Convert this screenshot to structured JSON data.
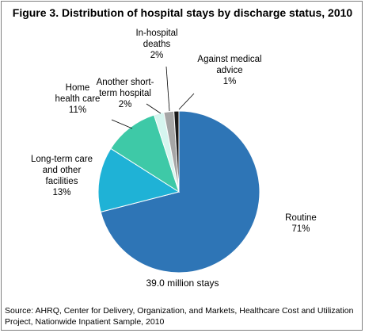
{
  "chart_data": {
    "type": "pie",
    "title": "Figure 3. Distribution of hospital stays by discharge status, 2010",
    "total_note": "39.0 million stays",
    "source": "Source: AHRQ, Center for Delivery, Organization, and Markets, Healthcare Cost and Utilization Project, Nationwide Inpatient Sample, 2010",
    "slices": [
      {
        "name": "Routine",
        "value": 71,
        "label": "71%",
        "color": "#2e75b6"
      },
      {
        "name": "Long-term care and other facilities",
        "value": 13,
        "label": "13%",
        "color": "#1fb2d6"
      },
      {
        "name": "Home health care",
        "value": 11,
        "label": "11%",
        "color": "#3ec9a7"
      },
      {
        "name": "Another short-term hospital",
        "value": 2,
        "label": "2%",
        "color": "#d6f5ef"
      },
      {
        "name": "In-hospital deaths",
        "value": 2,
        "label": "2%",
        "color": "#a6a6a6"
      },
      {
        "name": "Against medical advice",
        "value": 1,
        "label": "1%",
        "color": "#1a1a1a"
      }
    ]
  },
  "labels": {
    "routine": {
      "line1": "Routine",
      "pct": "71%"
    },
    "ltc": {
      "line1": "Long-term care",
      "line2": "and other",
      "line3": "facilities",
      "pct": "13%"
    },
    "home": {
      "line1": "Home",
      "line2": "health care",
      "pct": "11%"
    },
    "short_term": {
      "line1": "Another short-",
      "line2": "term hospital",
      "pct": "2%"
    },
    "deaths": {
      "line1": "In-hospital",
      "line2": "deaths",
      "pct": "2%"
    },
    "ama": {
      "line1": "Against medical",
      "line2": "advice",
      "pct": "1%"
    }
  }
}
